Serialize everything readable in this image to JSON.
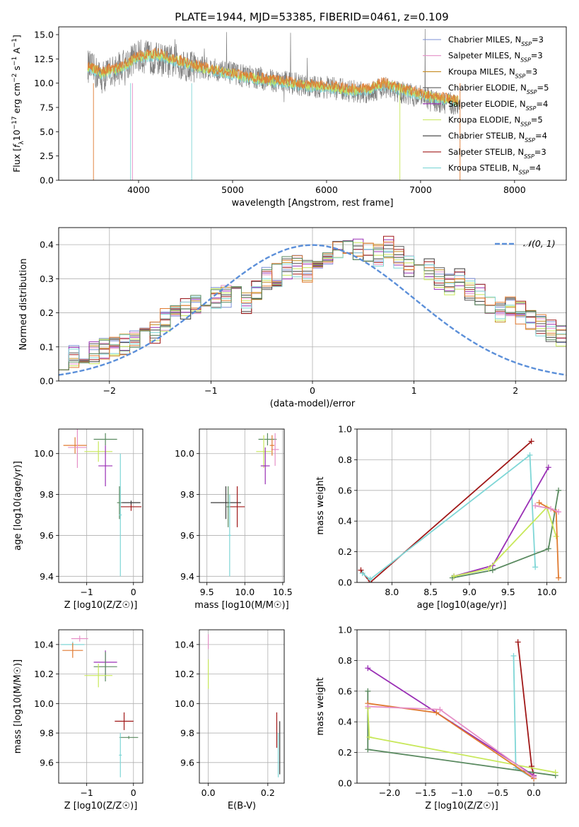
{
  "figure": {
    "title": "PLATE=1944, MJD=53385, FIBERID=0461, z=0.109"
  },
  "colors": {
    "data": "#7f7f7f",
    "grid": "#b0b0b0",
    "gauss": "#5b8fd9",
    "series": [
      "#7b8fd6",
      "#e58fc7",
      "#c58b1f",
      "#5a5a5a",
      "#9a2fb5",
      "#c8e85a",
      "#3a3a3a",
      "#a01818",
      "#7fd6d6",
      "#e07a30",
      "#5a8a60"
    ]
  },
  "chart_data": [
    {
      "type": "line",
      "name": "spectrum",
      "xlabel": "wavelength [Angstrom, rest frame]",
      "ylabel": "Flux [f_λ 10^-17 erg cm^-2 s^-1 A^-1]",
      "xlim": [
        3150,
        8550
      ],
      "ylim": [
        0,
        15.8
      ],
      "xticks": [
        4000,
        5000,
        6000,
        7000,
        8000
      ],
      "yticks": [
        0.0,
        2.5,
        5.0,
        7.5,
        10.0,
        12.5,
        15.0
      ],
      "grid": false,
      "legend_position": "top-right",
      "data_profile": {
        "x": [
          3460,
          3600,
          3800,
          4000,
          4200,
          4400,
          4600,
          4800,
          5000,
          5200,
          5400,
          5600,
          5800,
          6000,
          6200,
          6400,
          6600,
          6800,
          7000,
          7200,
          7400
        ],
        "y": [
          11.8,
          10.6,
          11.6,
          12.8,
          12.5,
          12.1,
          11.7,
          11.4,
          11.0,
          10.6,
          10.3,
          10.1,
          9.6,
          9.6,
          9.3,
          9.0,
          9.6,
          9.0,
          8.6,
          8.0,
          7.8
        ]
      },
      "model_profile": {
        "x": [
          3460,
          3600,
          3800,
          4000,
          4200,
          4400,
          4600,
          4800,
          5000,
          5200,
          5400,
          5600,
          5800,
          6000,
          6200,
          6400,
          6600,
          6800,
          7000,
          7200,
          7400
        ],
        "y": [
          11.6,
          10.9,
          11.4,
          12.6,
          12.8,
          12.2,
          11.6,
          11.2,
          10.8,
          10.4,
          10.1,
          9.9,
          9.6,
          9.5,
          9.2,
          9.1,
          9.8,
          9.2,
          8.7,
          8.3,
          8.0
        ]
      },
      "legend": [
        {
          "label": "Chabrier MILES, N",
          "sub": "SSP",
          "n": "=3"
        },
        {
          "label": "Salpeter MILES, N",
          "sub": "SSP",
          "n": "=3"
        },
        {
          "label": "Kroupa MILES, N",
          "sub": "SSP",
          "n": "=3"
        },
        {
          "label": "Chabrier ELODIE, N",
          "sub": "SSP",
          "n": "=5"
        },
        {
          "label": "Salpeter ELODIE, N",
          "sub": "SSP",
          "n": "=4"
        },
        {
          "label": "Kroupa ELODIE, N",
          "sub": "SSP",
          "n": "=5"
        },
        {
          "label": "Chabrier STELIB, N",
          "sub": "SSP",
          "n": "=4"
        },
        {
          "label": "Salpeter STELIB, N",
          "sub": "SSP",
          "n": "=3"
        },
        {
          "label": "Kroupa STELIB, N",
          "sub": "SSP",
          "n": "=4"
        }
      ]
    },
    {
      "type": "line",
      "name": "residual-distribution",
      "xlabel": "(data-model)/error",
      "ylabel": "Normed distribution",
      "xlim": [
        -2.5,
        2.5
      ],
      "ylim": [
        0,
        0.45
      ],
      "xticks": [
        -2,
        -1,
        0,
        1,
        2
      ],
      "yticks": [
        0.0,
        0.1,
        0.2,
        0.3,
        0.4
      ],
      "grid": true,
      "legend_position": "top-right",
      "legend": "𝒩(0, 1)",
      "bin_width": 0.1,
      "hist_x_start": -2.5,
      "hist_shape": [
        0.065,
        0.07,
        0.08,
        0.085,
        0.09,
        0.095,
        0.11,
        0.13,
        0.15,
        0.14,
        0.18,
        0.2,
        0.21,
        0.22,
        0.2,
        0.24,
        0.25,
        0.26,
        0.23,
        0.27,
        0.3,
        0.31,
        0.33,
        0.34,
        0.32,
        0.35,
        0.37,
        0.38,
        0.4,
        0.39,
        0.38,
        0.37,
        0.39,
        0.36,
        0.34,
        0.35,
        0.33,
        0.3,
        0.28,
        0.3,
        0.27,
        0.25,
        0.22,
        0.2,
        0.22,
        0.2,
        0.18,
        0.16,
        0.15,
        0.13,
        0.12,
        0.11,
        0.1,
        0.09,
        0.08,
        0.07,
        0.06,
        0.05,
        0.045,
        0.04
      ]
    },
    {
      "type": "scatter",
      "name": "age-vs-metallicity",
      "xlabel": "Z [log10(Z/Z☉)]",
      "ylabel": "age [log10(age/yr)]",
      "xlim": [
        -1.6,
        0.2
      ],
      "ylim": [
        9.37,
        10.12
      ],
      "xticks": [
        -1,
        0
      ],
      "yticks": [
        9.4,
        9.6,
        9.8,
        10.0
      ],
      "grid": true,
      "points": [
        {
          "x": -1.25,
          "y": 10.04,
          "xerr": 0.25,
          "yerr": 0.04,
          "color": 9
        },
        {
          "x": -1.2,
          "y": 10.03,
          "xerr": 0.2,
          "yerr": 0.1,
          "color": 1
        },
        {
          "x": -0.75,
          "y": 10.01,
          "xerr": 0.3,
          "yerr": 0.05,
          "color": 5
        },
        {
          "x": -0.6,
          "y": 10.07,
          "xerr": 0.25,
          "yerr": 0.03,
          "color": 10
        },
        {
          "x": -0.6,
          "y": 9.94,
          "xerr": 0.15,
          "yerr": 0.1,
          "color": 4
        },
        {
          "x": -0.3,
          "y": 9.76,
          "xerr": 0.05,
          "yerr": 0.08,
          "color": 10
        },
        {
          "x": -0.05,
          "y": 9.74,
          "xerr": 0.22,
          "yerr": 0.02,
          "color": 7
        },
        {
          "x": -0.28,
          "y": 9.7,
          "xerr": 0.03,
          "yerr": 0.3,
          "color": 8
        },
        {
          "x": -0.05,
          "y": 9.76,
          "xerr": 0.2,
          "yerr": 0.01,
          "color": 6
        }
      ]
    },
    {
      "type": "scatter",
      "name": "age-vs-mass",
      "xlabel": "mass [log10(M/M☉)]",
      "ylabel": "",
      "xlim": [
        9.4,
        10.52
      ],
      "ylim": [
        9.37,
        10.12
      ],
      "xticks": [
        9.5,
        10.0,
        10.5
      ],
      "yticks": [
        9.4,
        9.6,
        9.8,
        10.0
      ],
      "grid": true,
      "points": [
        {
          "x": 10.3,
          "y": 10.07,
          "xerr": 0.12,
          "yerr": 0.03,
          "color": 10
        },
        {
          "x": 10.25,
          "y": 10.01,
          "xerr": 0.1,
          "yerr": 0.08,
          "color": 5
        },
        {
          "x": 10.4,
          "y": 10.02,
          "xerr": 0.05,
          "yerr": 0.08,
          "color": 1
        },
        {
          "x": 10.36,
          "y": 10.04,
          "xerr": 0.03,
          "yerr": 0.05,
          "color": 9
        },
        {
          "x": 10.27,
          "y": 9.94,
          "xerr": 0.06,
          "yerr": 0.09,
          "color": 4
        },
        {
          "x": 9.75,
          "y": 9.76,
          "xerr": 0.2,
          "yerr": 0.08,
          "color": 6
        },
        {
          "x": 9.78,
          "y": 9.74,
          "xerr": 0.02,
          "yerr": 0.1,
          "color": 10
        },
        {
          "x": 9.9,
          "y": 9.74,
          "xerr": 0.1,
          "yerr": 0.1,
          "color": 7
        },
        {
          "x": 9.8,
          "y": 9.6,
          "xerr": 0.02,
          "yerr": 0.2,
          "color": 8
        }
      ]
    },
    {
      "type": "line",
      "name": "mass-weight-vs-age",
      "xlabel": "age [log10(age/yr)]",
      "ylabel": "mass weight",
      "xlim": [
        7.55,
        10.25
      ],
      "ylim": [
        0,
        1.0
      ],
      "xticks": [
        8.0,
        8.5,
        9.0,
        9.5,
        10.0
      ],
      "yticks": [
        0.0,
        0.2,
        0.4,
        0.6,
        0.8,
        1.0
      ],
      "grid": true,
      "series": [
        {
          "color": 7,
          "x": [
            7.6,
            7.72,
            9.8
          ],
          "y": [
            0.08,
            0.0,
            0.92
          ]
        },
        {
          "color": 8,
          "x": [
            7.62,
            7.72,
            9.78,
            9.85
          ],
          "y": [
            0.06,
            0.02,
            0.83,
            0.1
          ]
        },
        {
          "color": 4,
          "x": [
            8.8,
            9.3,
            10.02
          ],
          "y": [
            0.04,
            0.11,
            0.75
          ]
        },
        {
          "color": 10,
          "x": [
            8.78,
            9.3,
            10.02,
            10.15
          ],
          "y": [
            0.03,
            0.08,
            0.22,
            0.6
          ]
        },
        {
          "color": 5,
          "x": [
            8.8,
            9.25,
            10.0,
            10.12
          ],
          "y": [
            0.04,
            0.09,
            0.49,
            0.3
          ]
        },
        {
          "color": 9,
          "x": [
            9.9,
            10.12,
            10.15
          ],
          "y": [
            0.52,
            0.46,
            0.03
          ]
        },
        {
          "color": 1,
          "x": [
            9.85,
            10.05,
            10.15
          ],
          "y": [
            0.5,
            0.48,
            0.46
          ]
        }
      ]
    },
    {
      "type": "scatter",
      "name": "mass-vs-metallicity",
      "xlabel": "Z [log10(Z/Z☉)]",
      "ylabel": "mass [log10(M/M☉)]",
      "xlim": [
        -1.6,
        0.2
      ],
      "ylim": [
        9.46,
        10.5
      ],
      "xticks": [
        -1,
        0
      ],
      "yticks": [
        9.6,
        9.8,
        10.0,
        10.2,
        10.4
      ],
      "grid": true,
      "points": [
        {
          "x": -1.15,
          "y": 10.44,
          "xerr": 0.18,
          "yerr": 0.02,
          "color": 1
        },
        {
          "x": -1.3,
          "y": 10.4,
          "xerr": 0.25,
          "yerr": 0.02,
          "color": 8
        },
        {
          "x": -1.3,
          "y": 10.36,
          "xerr": 0.22,
          "yerr": 0.05,
          "color": 9
        },
        {
          "x": -0.6,
          "y": 10.28,
          "xerr": 0.25,
          "yerr": 0.08,
          "color": 4
        },
        {
          "x": -0.6,
          "y": 10.25,
          "xerr": 0.25,
          "yerr": 0.1,
          "color": 10
        },
        {
          "x": -0.75,
          "y": 10.19,
          "xerr": 0.3,
          "yerr": 0.08,
          "color": 5
        },
        {
          "x": -0.2,
          "y": 9.88,
          "xerr": 0.2,
          "yerr": 0.06,
          "color": 7
        },
        {
          "x": -0.1,
          "y": 9.77,
          "xerr": 0.2,
          "yerr": 0.01,
          "color": 10
        },
        {
          "x": -0.28,
          "y": 9.65,
          "xerr": 0.03,
          "yerr": 0.15,
          "color": 8
        }
      ]
    },
    {
      "type": "scatter",
      "name": "mass-vs-ebv",
      "xlabel": "E(B-V)",
      "ylabel": "",
      "xlim": [
        -0.03,
        0.255
      ],
      "ylim": [
        9.46,
        10.5
      ],
      "xticks": [
        0.0,
        0.2
      ],
      "yticks": [
        9.6,
        9.8,
        10.0,
        10.2,
        10.4
      ],
      "grid": true,
      "points": [
        {
          "x": 0.0,
          "y": 10.42,
          "xerr": 0.0,
          "yerr": 0.05,
          "color": 1
        },
        {
          "x": 0.0,
          "y": 10.2,
          "xerr": 0.0,
          "yerr": 0.1,
          "color": 5
        },
        {
          "x": 0.23,
          "y": 9.82,
          "xerr": 0.0,
          "yerr": 0.12,
          "color": 7
        },
        {
          "x": 0.24,
          "y": 9.7,
          "xerr": 0.0,
          "yerr": 0.18,
          "color": 6
        },
        {
          "x": 0.235,
          "y": 9.65,
          "xerr": 0.0,
          "yerr": 0.15,
          "color": 8
        }
      ]
    },
    {
      "type": "line",
      "name": "mass-weight-vs-metallicity",
      "xlabel": "Z [log10(Z/Z☉)]",
      "ylabel": "mass weight",
      "xlim": [
        -2.45,
        0.45
      ],
      "ylim": [
        0,
        1.0
      ],
      "xticks": [
        -2.0,
        -1.5,
        -1.0,
        -0.5,
        0.0
      ],
      "yticks": [
        0.0,
        0.2,
        0.4,
        0.6,
        0.8,
        1.0
      ],
      "grid": true,
      "series": [
        {
          "color": 7,
          "x": [
            -0.22,
            -0.03,
            0.0
          ],
          "y": [
            0.92,
            0.11,
            0.05
          ]
        },
        {
          "color": 8,
          "x": [
            -0.28,
            -0.25,
            0.0
          ],
          "y": [
            0.83,
            0.1,
            0.03
          ]
        },
        {
          "color": 4,
          "x": [
            -2.3,
            0.0
          ],
          "y": [
            0.75,
            0.05
          ]
        },
        {
          "color": 10,
          "x": [
            -2.3,
            -2.3,
            0.3
          ],
          "y": [
            0.6,
            0.22,
            0.05
          ]
        },
        {
          "color": 5,
          "x": [
            -2.3,
            -2.28,
            0.3
          ],
          "y": [
            0.49,
            0.3,
            0.07
          ]
        },
        {
          "color": 9,
          "x": [
            -2.3,
            -1.35,
            0.0
          ],
          "y": [
            0.52,
            0.46,
            0.03
          ]
        },
        {
          "color": 1,
          "x": [
            -2.3,
            -1.3,
            0.0
          ],
          "y": [
            0.5,
            0.48,
            0.04
          ]
        }
      ]
    }
  ]
}
